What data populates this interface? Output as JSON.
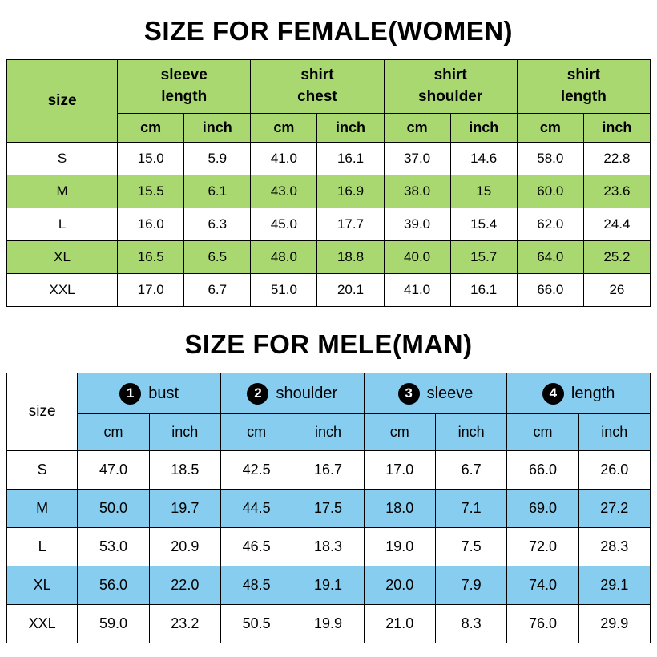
{
  "chart_data": [
    {
      "type": "table",
      "title": "SIZE FOR FEMALE(WOMEN)",
      "size_header": "size",
      "accent_color": "#a9d871",
      "groups": [
        {
          "label": "sleeve\nlength"
        },
        {
          "label": "shirt\nchest"
        },
        {
          "label": "shirt\nshoulder"
        },
        {
          "label": "shirt\nlength"
        }
      ],
      "unit_headers": [
        "cm",
        "inch"
      ],
      "rows": [
        {
          "size": "S",
          "values": [
            "15.0",
            "5.9",
            "41.0",
            "16.1",
            "37.0",
            "14.6",
            "58.0",
            "22.8"
          ]
        },
        {
          "size": "M",
          "values": [
            "15.5",
            "6.1",
            "43.0",
            "16.9",
            "38.0",
            "15",
            "60.0",
            "23.6"
          ]
        },
        {
          "size": "L",
          "values": [
            "16.0",
            "6.3",
            "45.0",
            "17.7",
            "39.0",
            "15.4",
            "62.0",
            "24.4"
          ]
        },
        {
          "size": "XL",
          "values": [
            "16.5",
            "6.5",
            "48.0",
            "18.8",
            "40.0",
            "15.7",
            "64.0",
            "25.2"
          ]
        },
        {
          "size": "XXL",
          "values": [
            "17.0",
            "6.7",
            "51.0",
            "20.1",
            "41.0",
            "16.1",
            "66.0",
            "26"
          ]
        }
      ]
    },
    {
      "type": "table",
      "title": "SIZE FOR MELE(MAN)",
      "size_header": "size",
      "accent_color": "#86cdf0",
      "groups": [
        {
          "num": "1",
          "label": "bust"
        },
        {
          "num": "2",
          "label": "shoulder"
        },
        {
          "num": "3",
          "label": "sleeve"
        },
        {
          "num": "4",
          "label": "length"
        }
      ],
      "unit_headers": [
        "cm",
        "inch"
      ],
      "rows": [
        {
          "size": "S",
          "values": [
            "47.0",
            "18.5",
            "42.5",
            "16.7",
            "17.0",
            "6.7",
            "66.0",
            "26.0"
          ]
        },
        {
          "size": "M",
          "values": [
            "50.0",
            "19.7",
            "44.5",
            "17.5",
            "18.0",
            "7.1",
            "69.0",
            "27.2"
          ]
        },
        {
          "size": "L",
          "values": [
            "53.0",
            "20.9",
            "46.5",
            "18.3",
            "19.0",
            "7.5",
            "72.0",
            "28.3"
          ]
        },
        {
          "size": "XL",
          "values": [
            "56.0",
            "22.0",
            "48.5",
            "19.1",
            "20.0",
            "7.9",
            "74.0",
            "29.1"
          ]
        },
        {
          "size": "XXL",
          "values": [
            "59.0",
            "23.2",
            "50.5",
            "19.9",
            "21.0",
            "8.3",
            "76.0",
            "29.9"
          ]
        }
      ]
    }
  ]
}
